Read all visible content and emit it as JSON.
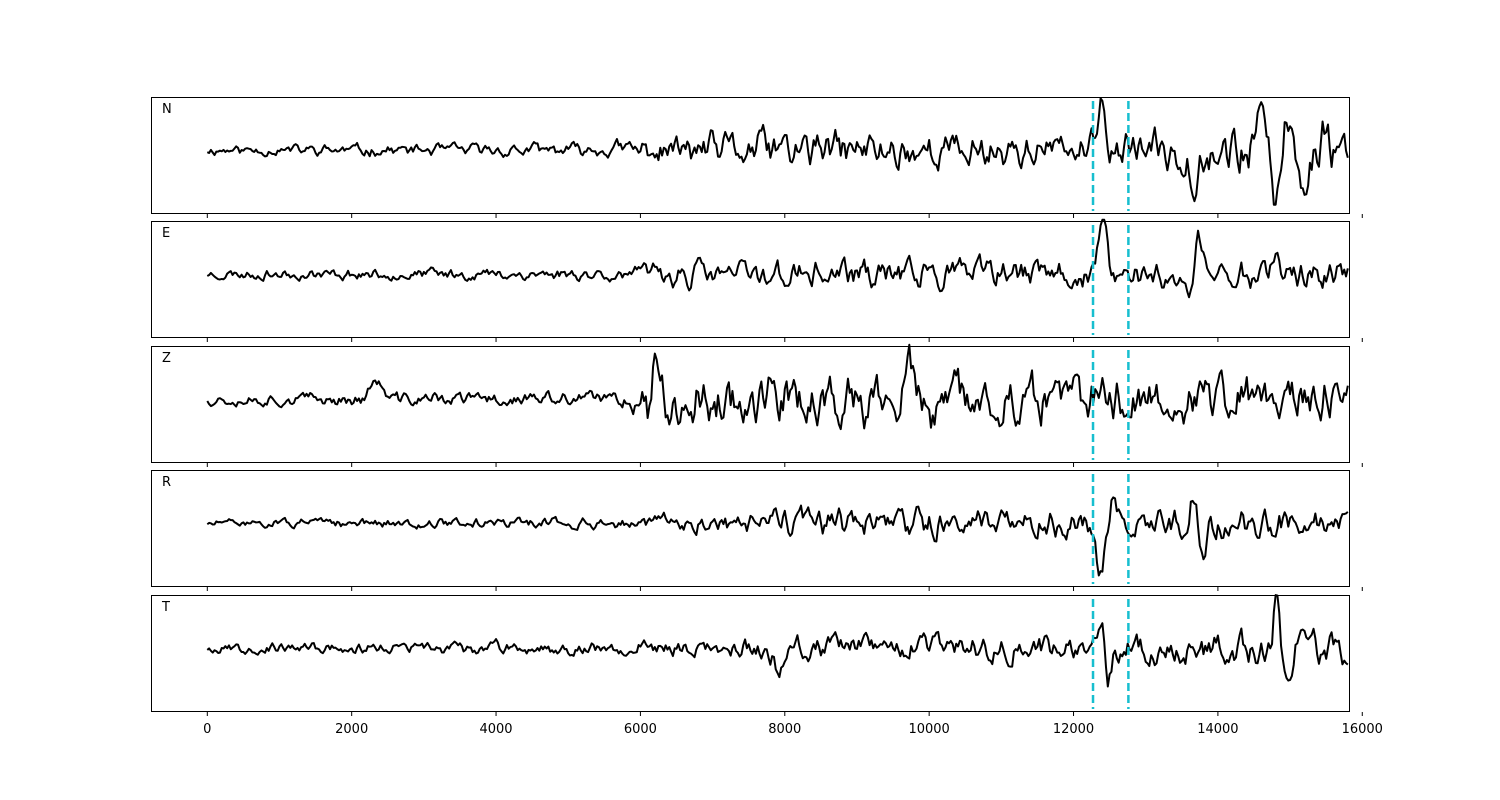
{
  "chart_data": {
    "type": "line",
    "x_range": [
      -780,
      15830
    ],
    "x_ticks": [
      0,
      2000,
      4000,
      6000,
      8000,
      10000,
      12000,
      14000,
      16000
    ],
    "x_tick_labels": [
      "0",
      "2000",
      "4000",
      "6000",
      "8000",
      "10000",
      "12000",
      "14000",
      "16000"
    ],
    "x_max": 15800,
    "sample_step": 25,
    "markers": [
      12270,
      12760
    ],
    "marker_color": "#17becf",
    "trace_color": "#000000",
    "panels": [
      {
        "label": "N",
        "noise_seed": 11,
        "base_amplitude": 0.032,
        "envelope": [
          [
            0,
            0.1
          ],
          [
            5500,
            0.14
          ],
          [
            6000,
            0.26
          ],
          [
            7600,
            0.42
          ],
          [
            12000,
            0.34
          ],
          [
            12500,
            0.38
          ],
          [
            13500,
            0.45
          ],
          [
            14800,
            0.55
          ],
          [
            15800,
            0.48
          ]
        ],
        "events": [
          {
            "x": 12410,
            "amplitude": 0.72,
            "width": 80
          },
          {
            "x": 13680,
            "amplitude": -0.4,
            "width": 90
          },
          {
            "x": 14800,
            "amplitude": -0.88,
            "width": 90
          },
          {
            "x": 14560,
            "amplitude": 0.5,
            "width": 70
          },
          {
            "x": 15000,
            "amplitude": 0.62,
            "width": 90
          },
          {
            "x": 15180,
            "amplitude": -0.72,
            "width": 90
          },
          {
            "x": 15480,
            "amplitude": 0.44,
            "width": 70
          }
        ]
      },
      {
        "label": "E",
        "noise_seed": 23,
        "base_amplitude": 0.024,
        "envelope": [
          [
            0,
            0.1
          ],
          [
            5900,
            0.13
          ],
          [
            6200,
            0.25
          ],
          [
            8600,
            0.3
          ],
          [
            12000,
            0.3
          ],
          [
            13000,
            0.33
          ],
          [
            15800,
            0.3
          ]
        ],
        "events": [
          {
            "x": 12400,
            "amplitude": 0.86,
            "width": 70
          },
          {
            "x": 13620,
            "amplitude": -0.72,
            "width": 90
          },
          {
            "x": 13720,
            "amplitude": 0.82,
            "width": 90
          },
          {
            "x": 14780,
            "amplitude": 0.42,
            "width": 80
          }
        ]
      },
      {
        "label": "Z",
        "noise_seed": 37,
        "base_amplitude": 0.04,
        "envelope": [
          [
            0,
            0.12
          ],
          [
            5800,
            0.16
          ],
          [
            6100,
            0.5
          ],
          [
            9000,
            0.56
          ],
          [
            12000,
            0.48
          ],
          [
            15800,
            0.5
          ]
        ],
        "events": [
          {
            "x": 2340,
            "amplitude": 0.35,
            "width": 100
          },
          {
            "x": 6180,
            "amplitude": 0.92,
            "width": 70
          },
          {
            "x": 6130,
            "amplitude": -0.6,
            "width": 60
          },
          {
            "x": 8780,
            "amplitude": -0.82,
            "width": 90
          },
          {
            "x": 10020,
            "amplitude": -0.72,
            "width": 80
          },
          {
            "x": 9720,
            "amplitude": 0.66,
            "width": 80
          }
        ]
      },
      {
        "label": "R",
        "noise_seed": 51,
        "base_amplitude": 0.02,
        "envelope": [
          [
            0,
            0.08
          ],
          [
            6000,
            0.12
          ],
          [
            6200,
            0.2
          ],
          [
            8500,
            0.3
          ],
          [
            12000,
            0.3
          ],
          [
            14500,
            0.32
          ],
          [
            15800,
            0.26
          ]
        ],
        "events": [
          {
            "x": 12380,
            "amplitude": -0.9,
            "width": 70
          },
          {
            "x": 12560,
            "amplitude": 0.4,
            "width": 60
          },
          {
            "x": 13690,
            "amplitude": 0.82,
            "width": 80
          },
          {
            "x": 13770,
            "amplitude": -0.8,
            "width": 80
          }
        ]
      },
      {
        "label": "T",
        "noise_seed": 67,
        "base_amplitude": 0.026,
        "envelope": [
          [
            0,
            0.1
          ],
          [
            7000,
            0.16
          ],
          [
            7600,
            0.24
          ],
          [
            12000,
            0.26
          ],
          [
            13000,
            0.32
          ],
          [
            15800,
            0.34
          ]
        ],
        "events": [
          {
            "x": 7910,
            "amplitude": -0.36,
            "width": 80
          },
          {
            "x": 12420,
            "amplitude": 0.58,
            "width": 60
          },
          {
            "x": 12470,
            "amplitude": -0.62,
            "width": 60
          },
          {
            "x": 14800,
            "amplitude": 1.0,
            "width": 80
          },
          {
            "x": 14740,
            "amplitude": -0.52,
            "width": 60
          },
          {
            "x": 15190,
            "amplitude": 0.62,
            "width": 90
          },
          {
            "x": 14950,
            "amplitude": -0.6,
            "width": 80
          }
        ]
      }
    ]
  }
}
